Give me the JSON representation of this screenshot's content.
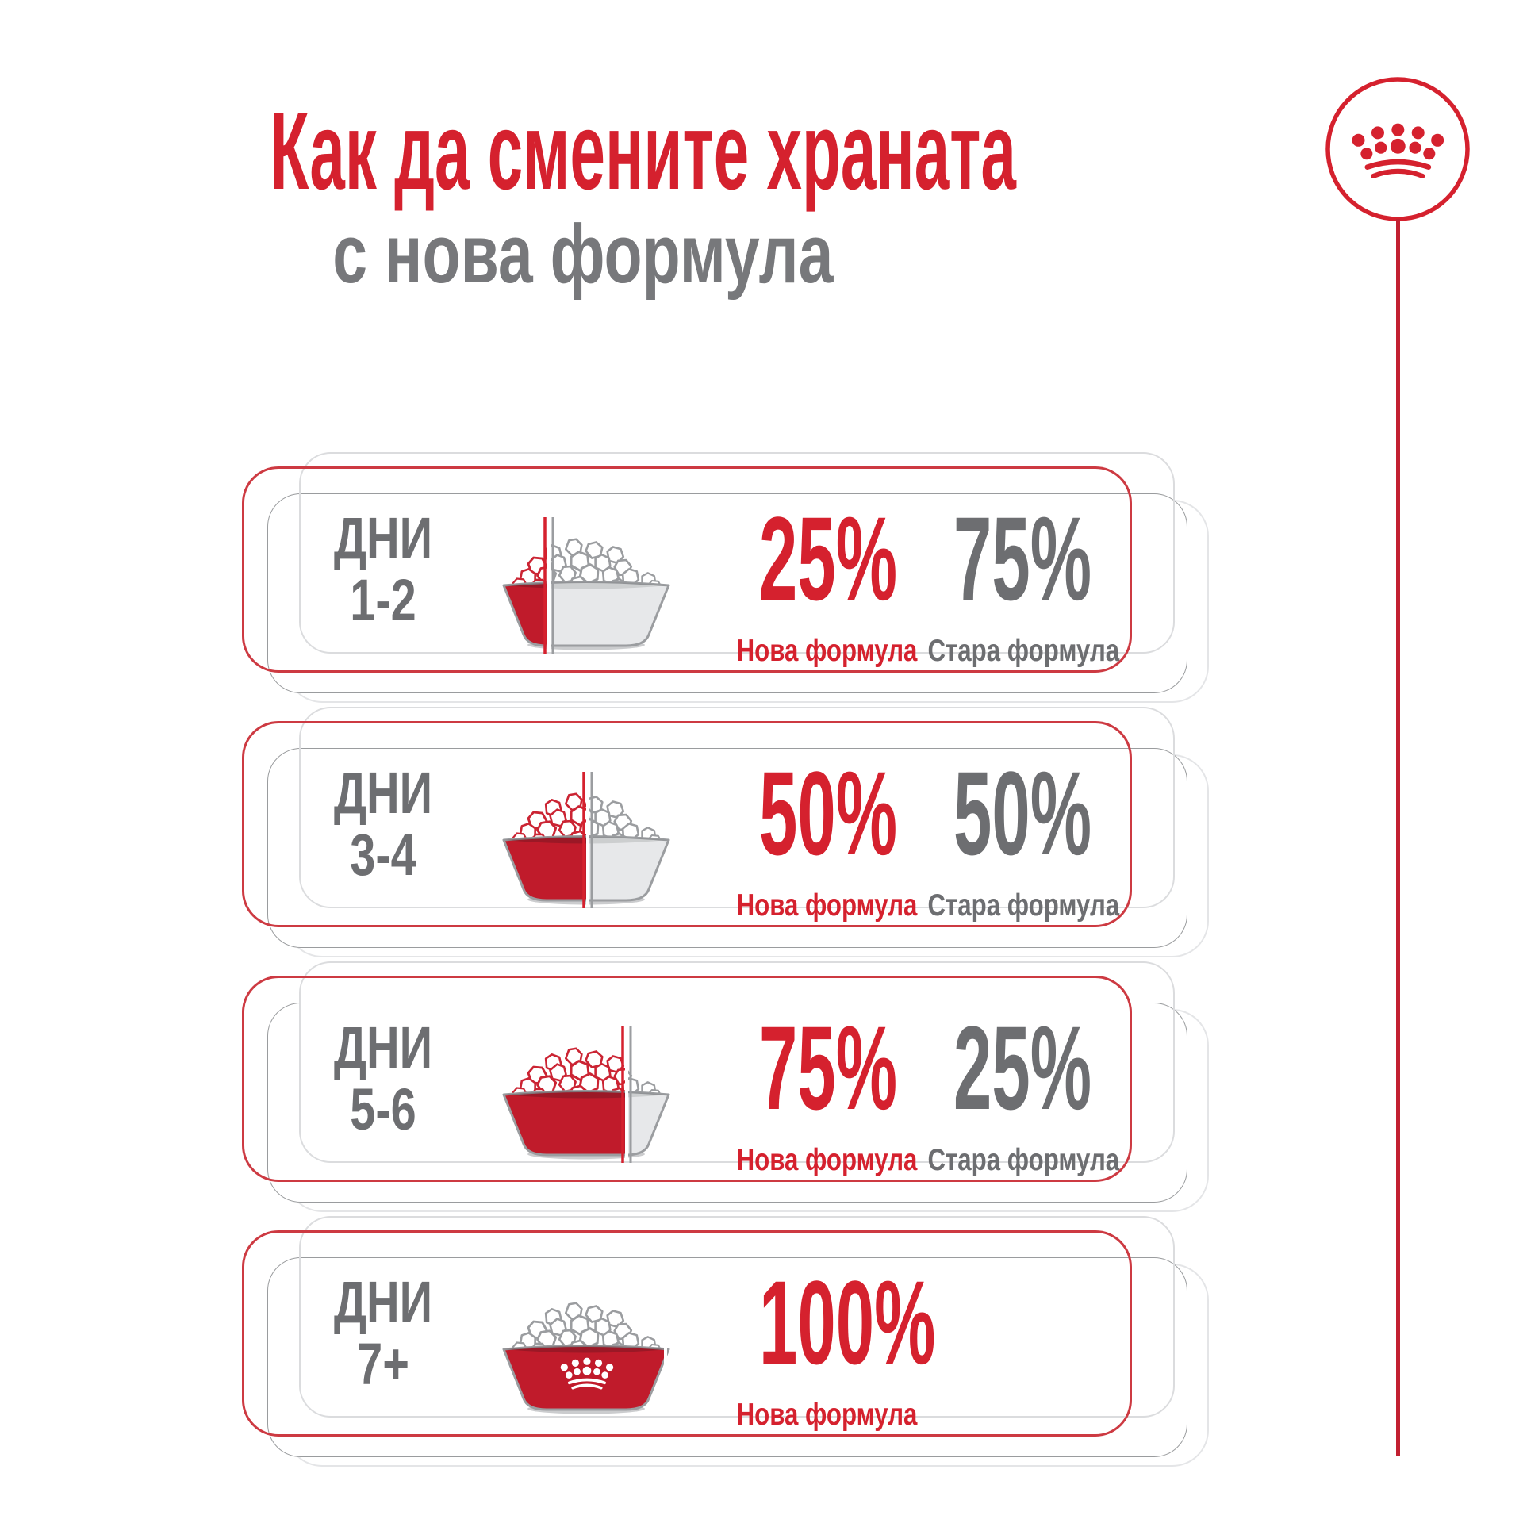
{
  "page": {
    "background": "#ffffff"
  },
  "title": {
    "line1": "Как да смените храната",
    "line2": "с нова формула"
  },
  "brand": {
    "logo": "royal-canin-crown",
    "accent_red": "#d5212e",
    "text_gray": "#6d6e71"
  },
  "labels": {
    "days_word": "ДНИ",
    "new_formula": "Нова формула",
    "old_formula": "Стара формула"
  },
  "rows": [
    {
      "days_range": "1-2",
      "new_pct": 25,
      "new_pct_label": "25%",
      "old_pct": 75,
      "old_pct_label": "75%"
    },
    {
      "days_range": "3-4",
      "new_pct": 50,
      "new_pct_label": "50%",
      "old_pct": 50,
      "old_pct_label": "50%"
    },
    {
      "days_range": "5-6",
      "new_pct": 75,
      "new_pct_label": "75%",
      "old_pct": 25,
      "old_pct_label": "25%"
    },
    {
      "days_range": "7+",
      "new_pct": 100,
      "new_pct_label": "100%",
      "old_pct": null,
      "old_pct_label": null
    }
  ]
}
